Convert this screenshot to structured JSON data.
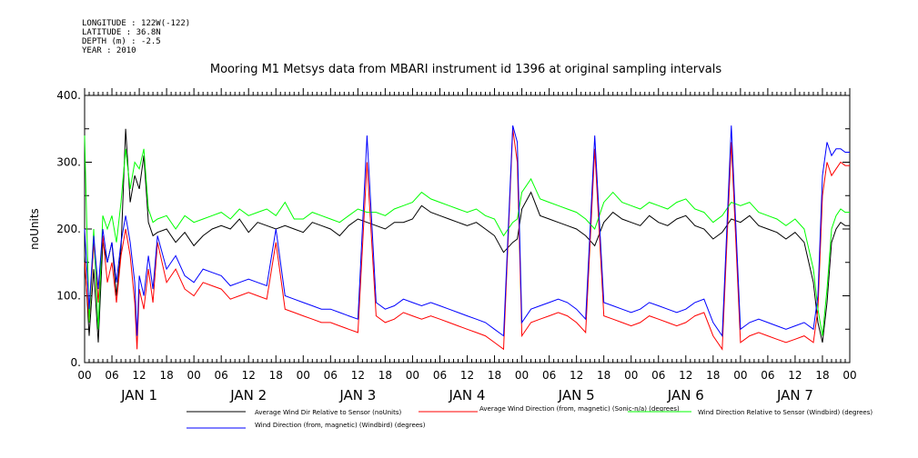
{
  "meta": {
    "longitude": "LONGITUDE : 122W(-122)",
    "latitude": "LATITUDE : 36.8N",
    "depth": "DEPTH (m) : -2.5",
    "year": "YEAR : 2010"
  },
  "chart_data": {
    "type": "line",
    "title": "Mooring M1 Metsys data from MBARI instrument id 1396 at original sampling intervals",
    "ylabel": "noUnits",
    "xlabel": "",
    "ylim": [
      0,
      400
    ],
    "yticks": [
      0,
      100,
      200,
      300,
      400
    ],
    "ytick_labels": [
      "0.",
      "100.",
      "200.",
      "300.",
      "400."
    ],
    "xlim_hours": [
      0,
      168
    ],
    "xtick_labels": [
      "00",
      "06",
      "12",
      "18",
      "00",
      "06",
      "12",
      "18",
      "00",
      "06",
      "12",
      "18",
      "00",
      "06",
      "12",
      "18",
      "00",
      "06",
      "12",
      "18",
      "00",
      "06",
      "12",
      "18",
      "00",
      "06",
      "12",
      "18",
      "00"
    ],
    "day_labels": [
      "JAN 1",
      "JAN 2",
      "JAN 3",
      "JAN 4",
      "JAN 5",
      "JAN 6",
      "JAN 7"
    ],
    "grid": false,
    "legend_position": "bottom",
    "series": [
      {
        "name": "Average Wind Dir Relative to Sensor (noUnits)",
        "color": "#000000",
        "x": [
          0,
          1,
          2,
          3,
          4,
          5,
          6,
          7,
          8,
          9,
          10,
          11,
          12,
          13,
          14,
          15,
          16,
          18,
          20,
          22,
          24,
          26,
          28,
          30,
          32,
          34,
          36,
          38,
          40,
          42,
          44,
          46,
          48,
          50,
          52,
          54,
          56,
          58,
          60,
          62,
          64,
          66,
          68,
          70,
          72,
          74,
          76,
          78,
          80,
          82,
          84,
          86,
          88,
          90,
          92,
          94,
          95,
          96,
          98,
          100,
          102,
          104,
          106,
          108,
          110,
          112,
          114,
          116,
          118,
          120,
          122,
          124,
          126,
          128,
          130,
          132,
          134,
          136,
          138,
          140,
          142,
          144,
          146,
          148,
          150,
          152,
          154,
          156,
          158,
          160,
          161,
          162,
          163,
          164,
          165,
          166,
          167,
          168
        ],
        "y": [
          160,
          40,
          140,
          30,
          180,
          150,
          180,
          100,
          170,
          350,
          240,
          280,
          260,
          310,
          210,
          190,
          195,
          200,
          180,
          195,
          175,
          190,
          200,
          205,
          200,
          215,
          195,
          210,
          205,
          200,
          205,
          200,
          195,
          210,
          205,
          200,
          190,
          205,
          215,
          210,
          205,
          200,
          210,
          210,
          215,
          235,
          225,
          220,
          215,
          210,
          205,
          210,
          200,
          190,
          165,
          180,
          185,
          230,
          255,
          220,
          215,
          210,
          205,
          200,
          190,
          175,
          210,
          225,
          215,
          210,
          205,
          220,
          210,
          205,
          215,
          220,
          205,
          200,
          185,
          195,
          215,
          210,
          220,
          205,
          200,
          195,
          185,
          195,
          180,
          120,
          60,
          30,
          90,
          180,
          200,
          210,
          205,
          205
        ]
      },
      {
        "name": "Average Wind Direction (from, magnetic) (Sonic-n/a) (degrees)",
        "color": "#ff0000",
        "x": [
          0,
          1,
          2,
          3,
          4,
          5,
          6,
          7,
          8,
          9,
          10,
          11,
          11.5,
          12,
          13,
          14,
          15,
          16,
          18,
          20,
          22,
          24,
          26,
          28,
          30,
          32,
          34,
          36,
          38,
          40,
          42,
          44,
          46,
          48,
          50,
          52,
          54,
          56,
          58,
          60,
          62,
          64,
          66,
          68,
          70,
          72,
          74,
          76,
          78,
          80,
          82,
          84,
          86,
          88,
          90,
          92,
          94,
          95,
          96,
          98,
          100,
          102,
          104,
          106,
          108,
          110,
          112,
          114,
          116,
          118,
          120,
          122,
          124,
          126,
          128,
          130,
          132,
          134,
          136,
          138,
          140,
          142,
          144,
          146,
          148,
          150,
          152,
          154,
          156,
          158,
          160,
          161,
          162,
          163,
          164,
          165,
          166,
          167,
          168
        ],
        "y": [
          150,
          60,
          180,
          90,
          190,
          120,
          150,
          90,
          160,
          200,
          160,
          90,
          20,
          110,
          80,
          140,
          90,
          180,
          120,
          140,
          110,
          100,
          120,
          115,
          110,
          95,
          100,
          105,
          100,
          95,
          180,
          80,
          75,
          70,
          65,
          60,
          60,
          55,
          50,
          45,
          300,
          70,
          60,
          65,
          75,
          70,
          65,
          70,
          65,
          60,
          55,
          50,
          45,
          40,
          30,
          20,
          350,
          300,
          40,
          60,
          65,
          70,
          75,
          70,
          60,
          45,
          320,
          70,
          65,
          60,
          55,
          60,
          70,
          65,
          60,
          55,
          60,
          70,
          75,
          40,
          20,
          330,
          30,
          40,
          45,
          40,
          35,
          30,
          35,
          40,
          30,
          80,
          250,
          300,
          280,
          290,
          300,
          295,
          295
        ]
      },
      {
        "name": "Wind Direction Relative to Sensor (Windbird) (degrees)",
        "color": "#00ff00",
        "x": [
          0,
          1,
          2,
          3,
          4,
          5,
          6,
          7,
          8,
          9,
          10,
          11,
          12,
          13,
          14,
          15,
          16,
          18,
          20,
          22,
          24,
          26,
          28,
          30,
          32,
          34,
          36,
          38,
          40,
          42,
          44,
          46,
          48,
          50,
          52,
          54,
          56,
          58,
          60,
          62,
          64,
          66,
          68,
          70,
          72,
          74,
          76,
          78,
          80,
          82,
          84,
          86,
          88,
          90,
          92,
          94,
          95,
          96,
          98,
          100,
          102,
          104,
          106,
          108,
          110,
          112,
          114,
          116,
          118,
          120,
          122,
          124,
          126,
          128,
          130,
          132,
          134,
          136,
          138,
          140,
          142,
          144,
          146,
          148,
          150,
          152,
          154,
          156,
          158,
          160,
          161,
          162,
          163,
          164,
          165,
          166,
          167,
          168
        ],
        "y": [
          340,
          60,
          200,
          50,
          220,
          200,
          220,
          180,
          240,
          320,
          260,
          300,
          290,
          320,
          230,
          210,
          215,
          220,
          200,
          220,
          210,
          215,
          220,
          225,
          215,
          230,
          220,
          225,
          230,
          220,
          240,
          215,
          215,
          225,
          220,
          215,
          210,
          220,
          230,
          225,
          225,
          220,
          230,
          235,
          240,
          255,
          245,
          240,
          235,
          230,
          225,
          230,
          220,
          215,
          190,
          210,
          215,
          255,
          275,
          245,
          240,
          235,
          230,
          225,
          215,
          200,
          240,
          255,
          240,
          235,
          230,
          240,
          235,
          230,
          240,
          245,
          230,
          225,
          210,
          220,
          240,
          235,
          240,
          225,
          220,
          215,
          205,
          215,
          200,
          140,
          80,
          40,
          110,
          200,
          220,
          230,
          225,
          225
        ]
      },
      {
        "name": "Wind Direction (from, magnetic) (Windbird) (degrees)",
        "color": "#0000ff",
        "x": [
          0,
          1,
          2,
          3,
          4,
          5,
          6,
          7,
          8,
          9,
          10,
          11,
          11.5,
          12,
          13,
          14,
          15,
          16,
          18,
          20,
          22,
          24,
          26,
          28,
          30,
          32,
          34,
          36,
          38,
          40,
          42,
          44,
          46,
          48,
          50,
          52,
          54,
          56,
          58,
          60,
          62,
          64,
          66,
          68,
          70,
          72,
          74,
          76,
          78,
          80,
          82,
          84,
          86,
          88,
          90,
          92,
          94,
          95,
          96,
          98,
          100,
          102,
          104,
          106,
          108,
          110,
          112,
          114,
          116,
          118,
          120,
          122,
          124,
          126,
          128,
          130,
          132,
          134,
          136,
          138,
          140,
          142,
          144,
          146,
          148,
          150,
          152,
          154,
          156,
          158,
          160,
          161,
          162,
          163,
          164,
          165,
          166,
          167,
          168
        ],
        "y": [
          200,
          80,
          190,
          110,
          200,
          150,
          180,
          120,
          180,
          220,
          180,
          120,
          40,
          130,
          100,
          160,
          110,
          190,
          140,
          160,
          130,
          120,
          140,
          135,
          130,
          115,
          120,
          125,
          120,
          115,
          200,
          100,
          95,
          90,
          85,
          80,
          80,
          75,
          70,
          65,
          340,
          90,
          80,
          85,
          95,
          90,
          85,
          90,
          85,
          80,
          75,
          70,
          65,
          60,
          50,
          40,
          355,
          330,
          60,
          80,
          85,
          90,
          95,
          90,
          80,
          65,
          340,
          90,
          85,
          80,
          75,
          80,
          90,
          85,
          80,
          75,
          80,
          90,
          95,
          60,
          40,
          355,
          50,
          60,
          65,
          60,
          55,
          50,
          55,
          60,
          50,
          100,
          280,
          330,
          310,
          320,
          320,
          315,
          315
        ]
      }
    ]
  }
}
